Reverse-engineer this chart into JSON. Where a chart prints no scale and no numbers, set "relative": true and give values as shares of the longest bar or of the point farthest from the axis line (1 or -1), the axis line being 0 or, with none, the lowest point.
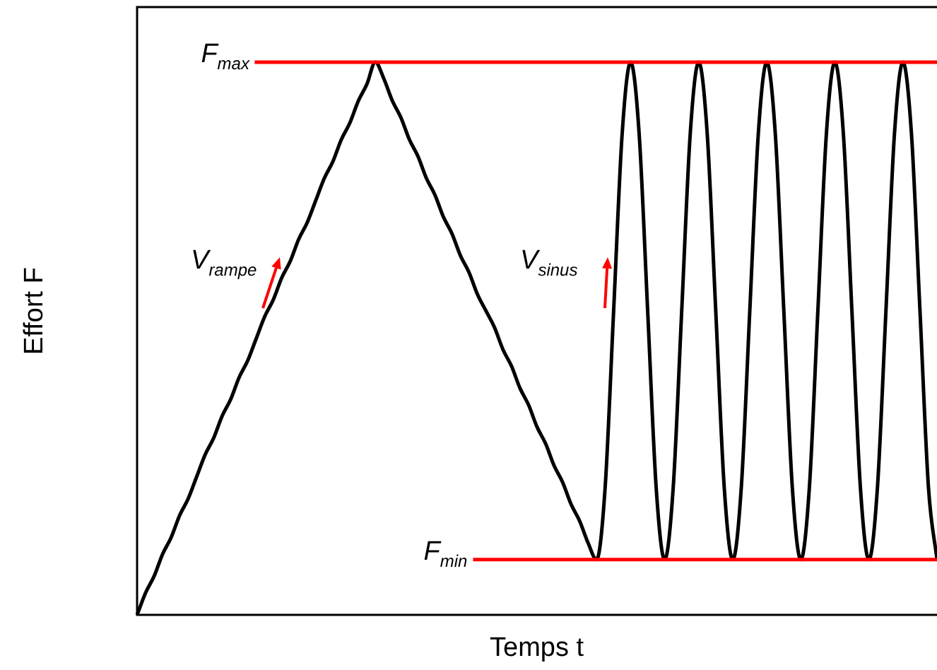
{
  "chart_data": {
    "type": "line",
    "relative": true,
    "xlabel": "Temps t",
    "ylabel": "Effort F",
    "legend": false,
    "tick_labels": false,
    "marker": "none",
    "line_style": "solid",
    "categories": [
      null,
      null,
      null,
      null,
      null,
      null,
      null,
      null,
      null,
      null,
      null,
      null,
      null,
      null,
      null,
      null,
      null,
      null,
      null,
      null,
      null,
      null,
      null,
      null,
      null,
      null,
      null,
      null,
      null,
      null,
      null,
      null,
      null,
      null,
      null,
      null,
      null,
      null,
      null,
      null,
      null,
      null,
      null,
      null,
      null,
      null,
      null,
      null,
      null,
      null,
      null,
      null,
      null,
      null,
      null,
      null,
      null,
      null,
      null,
      null,
      null,
      null,
      null,
      null,
      null,
      null,
      null,
      null,
      null,
      null,
      null,
      null,
      null,
      null,
      null,
      null,
      null,
      null,
      null,
      null,
      null,
      null,
      null,
      null,
      null,
      null,
      null,
      null,
      null,
      null,
      null,
      null,
      null,
      null,
      null
    ],
    "series": [
      {
        "color": "#000000",
        "values": [
          0,
          0.04,
          0.07,
          0.11,
          0.14,
          0.18,
          0.21,
          0.25,
          0.29,
          0.32,
          0.36,
          0.39,
          0.43,
          0.46,
          0.5,
          0.54,
          0.57,
          0.61,
          0.64,
          0.68,
          0.71,
          0.75,
          0.79,
          0.82,
          0.86,
          0.89,
          0.93,
          0.96,
          1,
          0.97,
          0.93,
          0.9,
          0.86,
          0.83,
          0.79,
          0.76,
          0.72,
          0.69,
          0.65,
          0.62,
          0.58,
          0.55,
          0.52,
          0.48,
          0.45,
          0.41,
          0.38,
          0.34,
          0.31,
          0.27,
          0.24,
          0.2,
          0.17,
          0.13,
          0.1,
          0.23,
          0.55,
          0.87,
          1,
          0.87,
          0.55,
          0.23,
          0.1,
          0.23,
          0.55,
          0.87,
          1,
          0.87,
          0.55,
          0.23,
          0.1,
          0.23,
          0.55,
          0.87,
          1,
          0.87,
          0.55,
          0.23,
          0.1,
          0.23,
          0.55,
          0.87,
          1,
          0.87,
          0.55,
          0.23,
          0.1,
          0.23,
          0.55,
          0.87,
          1,
          0.87,
          0.55,
          0.23,
          0.1
        ]
      }
    ],
    "ref_lines": [
      {
        "axis": "y",
        "value": 1,
        "label": "F$_{max}$",
        "color": "#ff0000"
      },
      {
        "axis": "y",
        "value": 0.1,
        "label": "F$_{min}$",
        "color": "#ff0000"
      }
    ],
    "annotations": [
      "V$_{rampe}$",
      "V$_{sinus}$"
    ]
  }
}
